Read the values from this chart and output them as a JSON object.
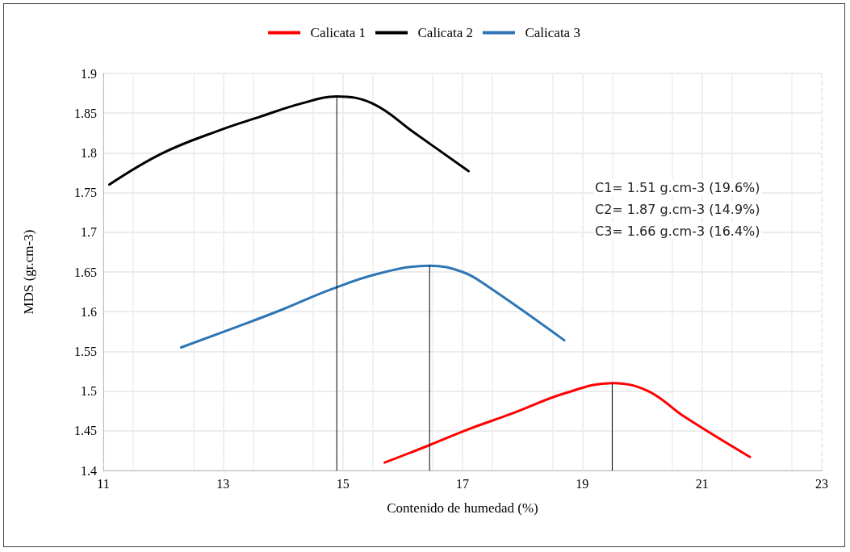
{
  "chart_data": {
    "type": "line",
    "xlabel": "Contenido de humedad (%)",
    "ylabel": "MDS (gr.cm-3)",
    "xlim": [
      11,
      23
    ],
    "xticks": [
      11,
      13,
      15,
      17,
      19,
      21,
      23
    ],
    "ylim": [
      1.4,
      1.9
    ],
    "yticks": [
      1.4,
      1.45,
      1.5,
      1.55,
      1.6,
      1.65,
      1.7,
      1.75,
      1.8,
      1.85,
      1.9
    ],
    "grid": true,
    "legend": "top",
    "marker": "none",
    "line_style": "solid",
    "annotations": [
      "C1= 1.51 g.cm-3 (19.6%)",
      "C2= 1.87 g.cm-3 (14.9%)",
      "C3= 1.66 g.cm-3 (16.4%)"
    ],
    "series": [
      {
        "name": "Calicata 1",
        "color": "#ff0000",
        "x": [
          15.7,
          16.45,
          17.1,
          17.8,
          18.7,
          19.5,
          20.1,
          20.7,
          21.8
        ],
        "values": [
          1.41,
          1.432,
          1.452,
          1.471,
          1.497,
          1.51,
          1.5,
          1.468,
          1.417
        ]
      },
      {
        "name": "Calicata 2",
        "color": "#000000",
        "x": [
          11.1,
          12,
          13,
          13.6,
          14.3,
          14.9,
          15.5,
          16.2,
          17.1
        ],
        "values": [
          1.76,
          1.8,
          1.83,
          1.845,
          1.862,
          1.871,
          1.862,
          1.825,
          1.777
        ]
      },
      {
        "name": "Calicata 3",
        "color": "#2e75b6",
        "x": [
          12.3,
          13.2,
          14.0,
          14.8,
          15.6,
          16.45,
          17.0,
          17.4,
          18.7
        ],
        "values": [
          1.555,
          1.58,
          1.603,
          1.628,
          1.648,
          1.658,
          1.65,
          1.633,
          1.564
        ]
      },
      {
        "color": "#000000",
        "x": [
          14.9,
          14.9
        ],
        "values": [
          1.4,
          1.871
        ]
      },
      {
        "color": "#000000",
        "x": [
          16.45,
          16.45
        ],
        "values": [
          1.4,
          1.658
        ]
      },
      {
        "color": "#000000",
        "x": [
          19.5,
          19.5
        ],
        "values": [
          1.4,
          1.51
        ]
      }
    ]
  }
}
